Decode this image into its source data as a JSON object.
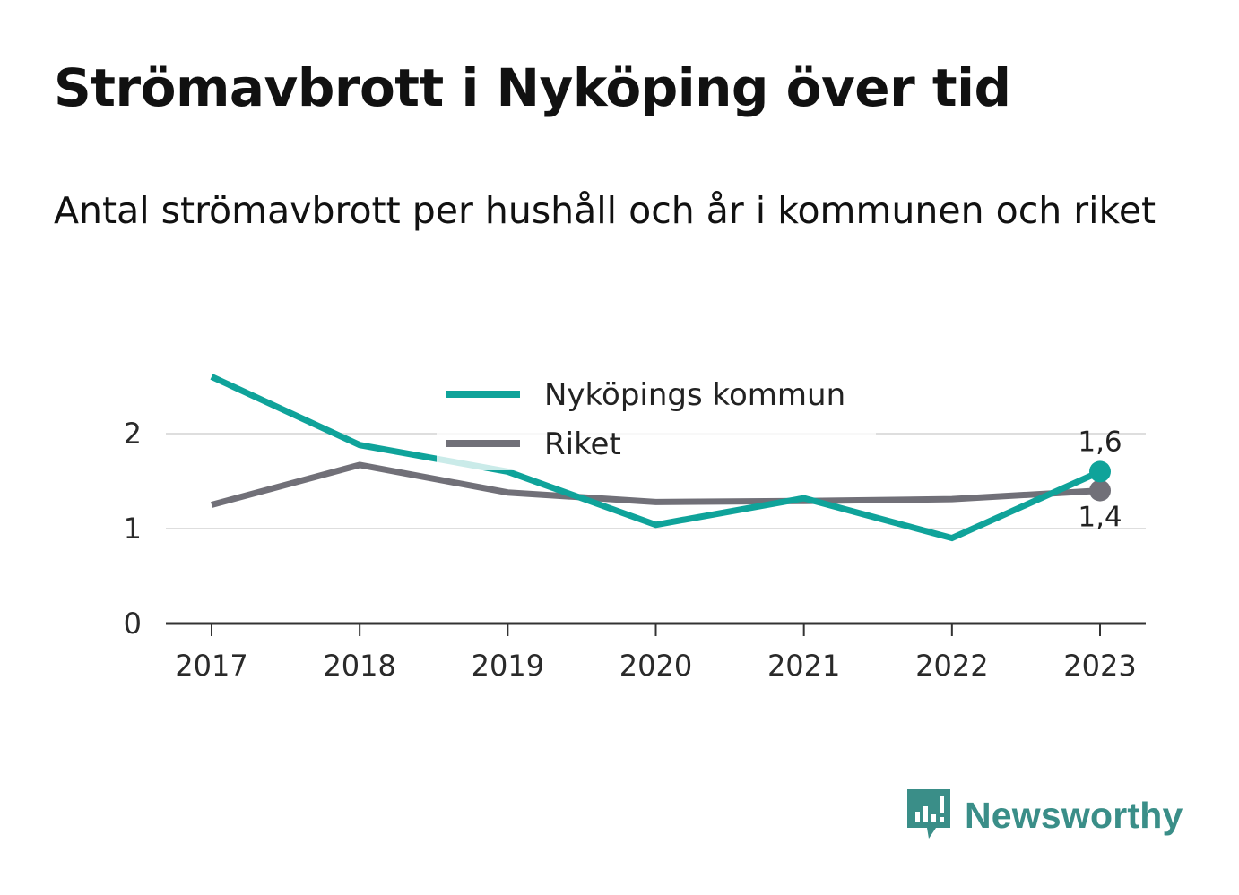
{
  "title": "Strömavbrott i Nyköping över tid",
  "subtitle": "Antal strömavbrott per hushåll och år i kommunen och riket",
  "brand": {
    "name": "Newsworthy",
    "color": "#3a8e88",
    "icon": "bar-chart-speech-bubble-icon"
  },
  "chart_data": {
    "type": "line",
    "x": [
      "2017",
      "2018",
      "2019",
      "2020",
      "2021",
      "2022",
      "2023"
    ],
    "ylim": [
      0,
      2.6
    ],
    "yticks": [
      0,
      1,
      2
    ],
    "ytick_labels": [
      "0",
      "1",
      "2"
    ],
    "grid": true,
    "legend_position": "top-center",
    "series": [
      {
        "name": "Nyköpings kommun",
        "color": "#0fa39a",
        "values": [
          2.6,
          1.88,
          1.6,
          1.04,
          1.32,
          0.9,
          1.6
        ],
        "end_label": "1,6"
      },
      {
        "name": "Riket",
        "color": "#717078",
        "values": [
          1.25,
          1.67,
          1.38,
          1.28,
          1.29,
          1.31,
          1.4
        ],
        "end_label": "1,4"
      }
    ]
  }
}
